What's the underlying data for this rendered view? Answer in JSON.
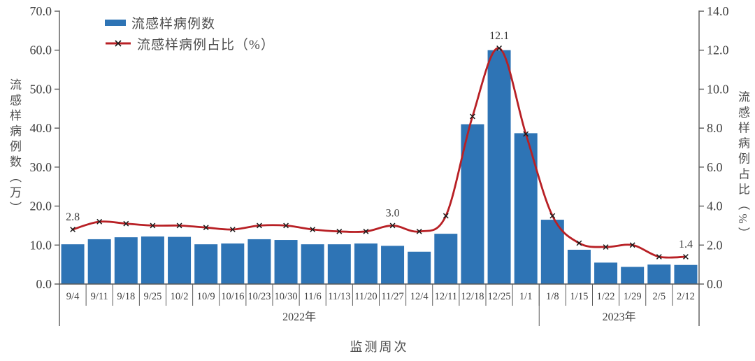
{
  "chart_data": {
    "type": "bar",
    "subtype": "combo-bar-line",
    "title": "",
    "categories": [
      "9/4",
      "9/11",
      "9/18",
      "9/25",
      "10/2",
      "10/9",
      "10/16",
      "10/23",
      "10/30",
      "11/6",
      "11/13",
      "11/20",
      "11/27",
      "12/4",
      "12/11",
      "12/18",
      "12/25",
      "1/1",
      "1/8",
      "1/15",
      "1/22",
      "1/29",
      "2/5",
      "2/12"
    ],
    "series": [
      {
        "name": "流感样病例数",
        "type": "bar",
        "axis": "left",
        "values": [
          10.2,
          11.5,
          12.0,
          12.2,
          12.1,
          10.2,
          10.4,
          11.5,
          11.3,
          10.2,
          10.2,
          10.4,
          9.8,
          8.3,
          12.9,
          41.0,
          60.0,
          38.7,
          16.5,
          8.8,
          5.5,
          4.4,
          5.0,
          4.9
        ]
      },
      {
        "name": "流感样病例占比（%）",
        "type": "line",
        "axis": "right",
        "values": [
          2.8,
          3.2,
          3.1,
          3.0,
          3.0,
          2.9,
          2.8,
          3.0,
          3.0,
          2.8,
          2.7,
          2.7,
          3.0,
          2.7,
          3.5,
          8.6,
          12.1,
          7.7,
          3.5,
          2.1,
          1.9,
          2.0,
          1.4,
          1.4
        ]
      }
    ],
    "annotations": [
      {
        "index": 0,
        "text": "2.8"
      },
      {
        "index": 12,
        "text": "3.0"
      },
      {
        "index": 16,
        "text": "12.1"
      },
      {
        "index": 23,
        "text": "1.4"
      }
    ],
    "left_axis": {
      "title": "流感样病例数（万）",
      "min": 0,
      "max": 70,
      "step": 10,
      "tick_labels": [
        "0.0",
        "10.0",
        "20.0",
        "30.0",
        "40.0",
        "50.0",
        "60.0",
        "70.0"
      ]
    },
    "right_axis": {
      "title": "流感样病例占比（%）",
      "min": 0,
      "max": 14,
      "step": 2,
      "tick_labels": [
        "0.0",
        "2.0",
        "4.0",
        "6.0",
        "8.0",
        "10.0",
        "12.0",
        "14.0"
      ]
    },
    "x_axis": {
      "title": "监测周次",
      "year_groups": [
        {
          "label": "2022年",
          "from": 0,
          "to": 17
        },
        {
          "label": "2023年",
          "from": 18,
          "to": 23
        }
      ]
    },
    "legend_position": "top",
    "grid": "off",
    "colors": {
      "bar": "#2e74b5",
      "line": "#b82025",
      "marker": "#1a1a1a",
      "axis": "#595959",
      "text": "#404040"
    }
  }
}
